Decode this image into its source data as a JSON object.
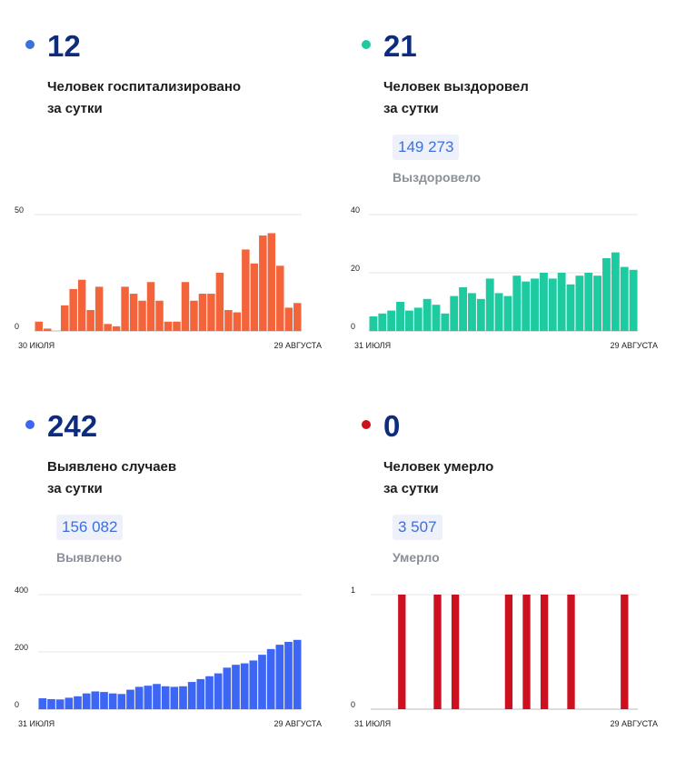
{
  "panels": [
    {
      "id": "hospitalized",
      "color": "#f4643b",
      "dot_color": "#3d6fdc",
      "value": "12",
      "line1": "Человек госпитализировано",
      "line2": "за сутки",
      "total": "",
      "total_label": ""
    },
    {
      "id": "recovered",
      "color": "#1ecaa0",
      "dot_color": "#1ecaa0",
      "value": "21",
      "line1": "Человек выздоровел",
      "line2": "за сутки",
      "total": "149 273",
      "total_label": "Выздоровело"
    },
    {
      "id": "cases",
      "color": "#3d66f5",
      "dot_color": "#3d66f5",
      "value": "242",
      "line1": "Выявлено случаев",
      "line2": "за сутки",
      "total": "156 082",
      "total_label": "Выявлено"
    },
    {
      "id": "deaths",
      "color": "#cc1020",
      "dot_color": "#cc1020",
      "value": "0",
      "line1": "Человек умерло",
      "line2": "за сутки",
      "total": "3 507",
      "total_label": "Умерло"
    }
  ],
  "chart_data": [
    {
      "type": "bar",
      "series": "hospitalized",
      "x_start_label": "30 ИЮЛЯ",
      "x_end_label": "29 АВГУСТА",
      "ylim": [
        0,
        50
      ],
      "yticks": [
        0,
        50
      ],
      "values": [
        4,
        1,
        0,
        11,
        18,
        22,
        9,
        19,
        3,
        2,
        19,
        16,
        13,
        21,
        13,
        4,
        4,
        21,
        13,
        16,
        16,
        25,
        9,
        8,
        35,
        29,
        41,
        42,
        28,
        10,
        12
      ]
    },
    {
      "type": "bar",
      "series": "recovered",
      "x_start_label": "31 ИЮЛЯ",
      "x_end_label": "29 АВГУСТА",
      "ylim": [
        0,
        40
      ],
      "yticks": [
        0,
        20,
        40
      ],
      "values": [
        5,
        6,
        7,
        10,
        7,
        8,
        11,
        9,
        6,
        12,
        15,
        13,
        11,
        18,
        13,
        12,
        19,
        17,
        18,
        20,
        18,
        20,
        16,
        19,
        20,
        19,
        25,
        27,
        22,
        21
      ]
    },
    {
      "type": "bar",
      "series": "cases",
      "x_start_label": "31 ИЮЛЯ",
      "x_end_label": "29 АВГУСТА",
      "ylim": [
        0,
        400
      ],
      "yticks": [
        0,
        200,
        400
      ],
      "values": [
        38,
        35,
        34,
        40,
        45,
        55,
        62,
        60,
        55,
        53,
        68,
        78,
        82,
        88,
        80,
        78,
        80,
        95,
        105,
        115,
        125,
        145,
        155,
        160,
        170,
        190,
        210,
        225,
        235,
        242
      ]
    },
    {
      "type": "bar",
      "series": "deaths",
      "x_start_label": "31 ИЮЛЯ",
      "x_end_label": "29 АВГУСТА",
      "ylim": [
        0,
        1
      ],
      "yticks": [
        0,
        1
      ],
      "values": [
        0,
        0,
        0,
        1,
        0,
        0,
        0,
        1,
        0,
        1,
        0,
        0,
        0,
        0,
        0,
        1,
        0,
        1,
        0,
        1,
        0,
        0,
        1,
        0,
        0,
        0,
        0,
        0,
        1,
        0
      ]
    }
  ]
}
